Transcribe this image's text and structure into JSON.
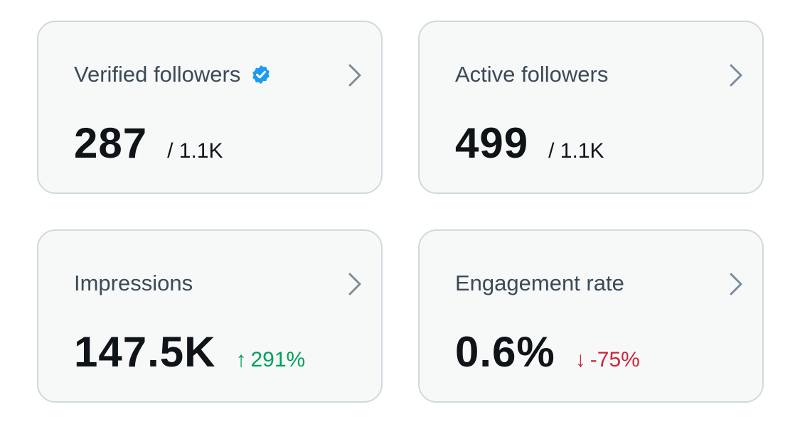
{
  "cards": [
    {
      "title": "Verified followers",
      "value": "287",
      "total": "/ 1.1K",
      "verified_icon": "verified-badge-icon",
      "accent": "#1d9bf0"
    },
    {
      "title": "Active followers",
      "value": "499",
      "total": "/ 1.1K"
    },
    {
      "title": "Impressions",
      "value": "147.5K",
      "change": {
        "arrow": "↑",
        "text": "291%",
        "direction": "up",
        "color": "#00a05a"
      }
    },
    {
      "title": "Engagement rate",
      "value": "0.6%",
      "change": {
        "arrow": "↓",
        "text": "-75%",
        "direction": "down",
        "color": "#d0243b"
      }
    }
  ],
  "icons": {
    "card_arrow": "chevron-right-icon"
  }
}
